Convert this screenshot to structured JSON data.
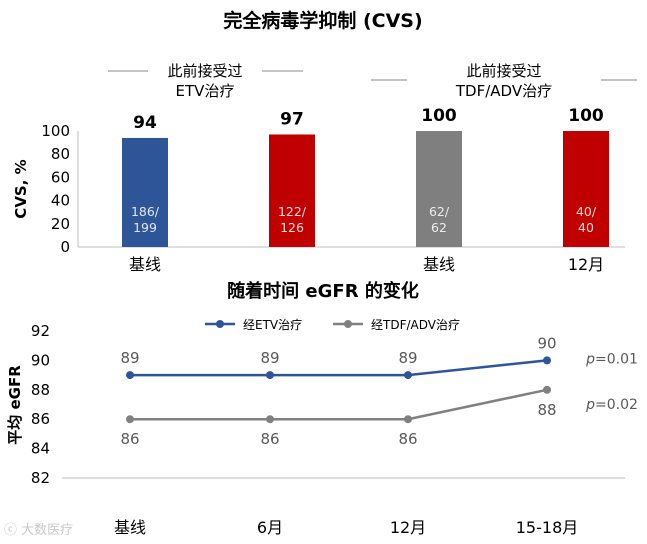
{
  "chart_data": [
    {
      "type": "bar",
      "title": "完全病毒学抑制 (CVS)",
      "ylabel": "CVS, %",
      "ylim": [
        0,
        100
      ],
      "yticks": [
        0,
        20,
        40,
        60,
        80,
        100
      ],
      "group_headers": [
        "此前接受过\nETV治疗",
        "此前接受过\nTDF/ADV治疗"
      ],
      "categories": [
        "基线",
        "",
        "基线",
        "12月"
      ],
      "values": [
        94,
        97,
        100,
        100
      ],
      "value_labels": [
        "94",
        "97",
        "100",
        "100"
      ],
      "fractions": [
        "186/\n199",
        "122/\n126",
        "62/\n62",
        "40/\n40"
      ],
      "colors": [
        "#2e5597",
        "#c00000",
        "#7f7f7f",
        "#c00000"
      ],
      "grid": false
    },
    {
      "type": "line",
      "title": "随着时间 eGFR 的变化",
      "ylabel": "平均 eGFR",
      "ylim": [
        82,
        92
      ],
      "yticks": [
        82,
        84,
        86,
        88,
        90,
        92
      ],
      "categories": [
        "基线",
        "6月",
        "12月",
        "15-18月"
      ],
      "series": [
        {
          "name": "经ETV治疗",
          "values": [
            89,
            89,
            89,
            90
          ],
          "color": "#2e5597",
          "p": "p=0.01"
        },
        {
          "name": "经TDF/ADV治疗",
          "values": [
            86,
            86,
            86,
            88
          ],
          "color": "#808080",
          "p": "p=0.02"
        }
      ],
      "legend": "top-center",
      "grid": false
    }
  ],
  "watermark": "大数医疗"
}
